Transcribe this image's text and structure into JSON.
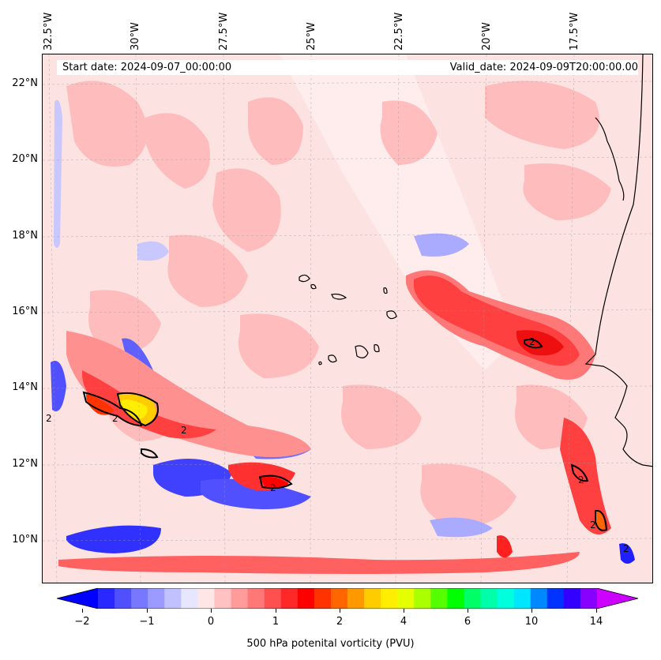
{
  "map": {
    "start_date": "Start date: 2024-09-07_00:00:00",
    "valid_date": "Valid_date: 2024-09-09T20:00:00.00",
    "lon_labels": [
      "32.5°W",
      "30°W",
      "27.5°W",
      "25°W",
      "22.5°W",
      "20°W",
      "17.5°W"
    ],
    "lat_labels": [
      "22°N",
      "20°N",
      "18°N",
      "16°N",
      "14°N",
      "12°N",
      "10°N"
    ],
    "contour_label": "2"
  },
  "colorbar": {
    "label": "500 hPa potenital vorticity (PVU)",
    "tick_labels": [
      "−2",
      "−1",
      "0",
      "1",
      "2",
      "4",
      "6",
      "10",
      "14"
    ],
    "colors": [
      "#0000ff",
      "#2828ff",
      "#5050ff",
      "#7878ff",
      "#9b9bff",
      "#c1c1ff",
      "#e6e6ff",
      "#ffe6e6",
      "#ffc1c1",
      "#ff9b9b",
      "#ff7878",
      "#ff5050",
      "#ff2828",
      "#ff0000",
      "#ff3300",
      "#ff6600",
      "#ff9900",
      "#ffcc00",
      "#ffee00",
      "#e6ff00",
      "#aaff00",
      "#55ff00",
      "#00ff00",
      "#00ff66",
      "#00ffaa",
      "#00ffdd",
      "#00e6ff",
      "#0088ff",
      "#0033ff",
      "#3300ff",
      "#8800ff",
      "#cc00ff"
    ]
  }
}
